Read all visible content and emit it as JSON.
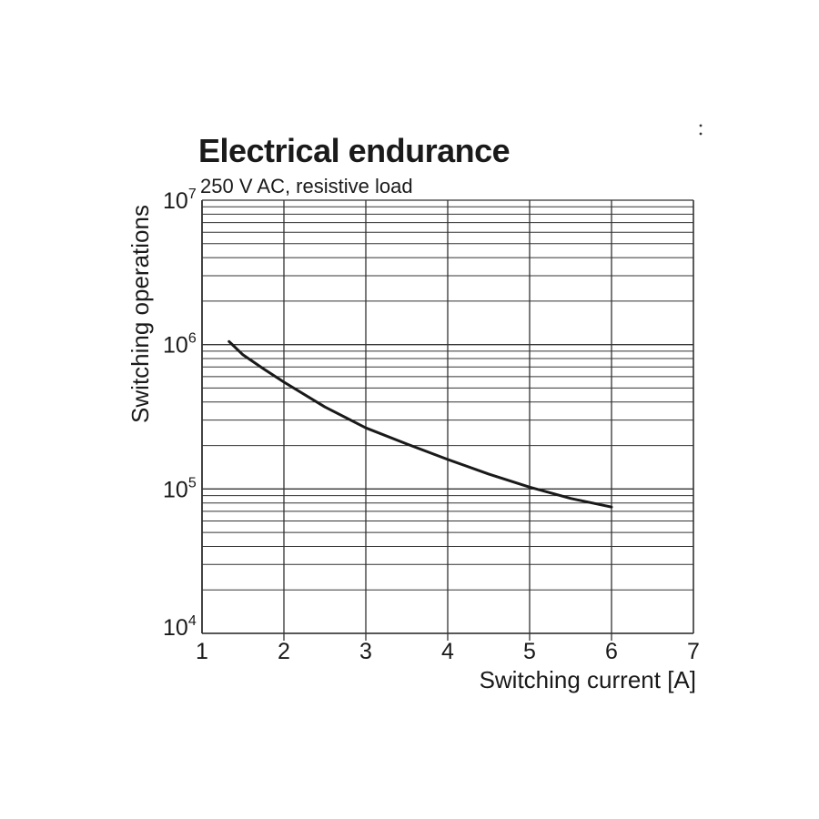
{
  "chart_data": {
    "type": "line",
    "title": "Electrical endurance",
    "subtitle": "250 V AC, resistive load",
    "xlabel": "Switching current [A]",
    "ylabel": "Switching operations",
    "xlim": [
      1,
      7
    ],
    "ylim": [
      10000,
      10000000
    ],
    "yscale": "log",
    "grid": true,
    "x_ticks": [
      "1",
      "2",
      "3",
      "4",
      "5",
      "6",
      "7"
    ],
    "y_ticks": [
      {
        "value": 10000,
        "base": "10",
        "exp": "4"
      },
      {
        "value": 100000,
        "base": "10",
        "exp": "5"
      },
      {
        "value": 1000000,
        "base": "10",
        "exp": "6"
      },
      {
        "value": 10000000,
        "base": "10",
        "exp": "7"
      }
    ],
    "series": [
      {
        "x": [
          1.33,
          1.5,
          1.75,
          2.0,
          2.5,
          3.0,
          3.5,
          4.0,
          4.5,
          5.0,
          5.5,
          6.0
        ],
        "y": [
          1050000,
          850000,
          680000,
          550000,
          370000,
          265000,
          205000,
          160000,
          127000,
          103000,
          86000,
          75000
        ]
      }
    ],
    "color": "#1a1a1a"
  }
}
